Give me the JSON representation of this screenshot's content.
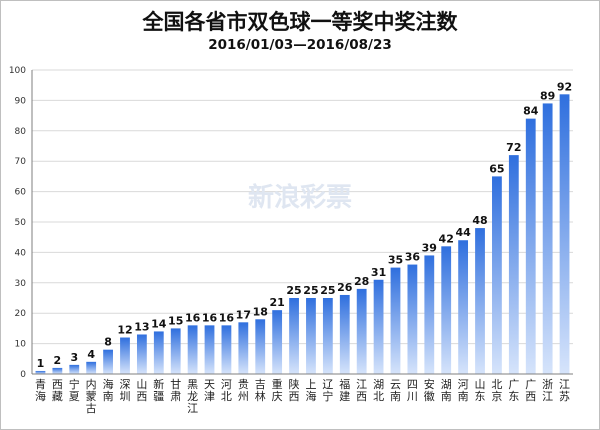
{
  "title": "全国各省市双色球一等奖中奖注数",
  "subtitle": "2016/01/03—2016/08/23",
  "watermark": "新浪彩票",
  "colors": {
    "bar_top": "#2f6fde",
    "bar_bottom": "#d6e4fb",
    "grid": "#d9d9d9",
    "axis": "#7f7f7f"
  },
  "chart_data": {
    "type": "bar",
    "title": "全国各省市双色球一等奖中奖注数",
    "subtitle": "2016/01/03—2016/08/23",
    "xlabel": "",
    "ylabel": "",
    "ylim": [
      0,
      100
    ],
    "yticks": [
      0,
      10,
      20,
      30,
      40,
      50,
      60,
      70,
      80,
      90,
      100
    ],
    "grid": true,
    "legend": "none",
    "categories": [
      "青海",
      "西藏",
      "宁夏",
      "内蒙古",
      "海南",
      "深圳",
      "山西",
      "新疆",
      "甘肃",
      "黑龙江",
      "天津",
      "河北",
      "贵州",
      "吉林",
      "重庆",
      "陕西",
      "上海",
      "辽宁",
      "福建",
      "江西",
      "湖北",
      "云南",
      "四川",
      "安徽",
      "湖南",
      "河南",
      "山东",
      "北京",
      "广东",
      "广西",
      "浙江",
      "江苏"
    ],
    "values": [
      1,
      2,
      3,
      4,
      8,
      12,
      13,
      14,
      15,
      16,
      16,
      16,
      17,
      18,
      21,
      25,
      25,
      25,
      26,
      28,
      31,
      35,
      36,
      39,
      42,
      44,
      48,
      65,
      72,
      84,
      89,
      92
    ],
    "labels": [
      "1",
      "2",
      "3",
      "4",
      "8",
      "12",
      "13",
      "14",
      "15",
      "16",
      "16",
      "16",
      "17",
      "18",
      "21",
      "25",
      "25",
      "25",
      "26",
      "28",
      "31",
      "35",
      "36",
      "39",
      "42",
      "44",
      "48",
      "65",
      "72",
      "84",
      "89",
      "92"
    ]
  }
}
